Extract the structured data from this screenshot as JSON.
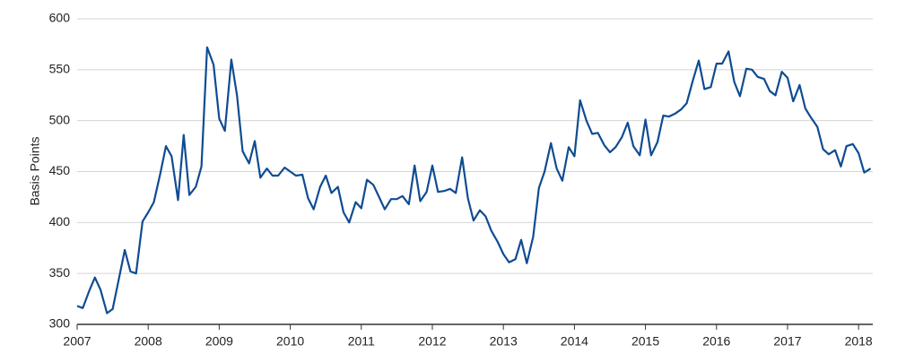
{
  "chart_data": {
    "type": "line",
    "y_label": "Basis Points",
    "x": [
      2007.0,
      2007.08,
      2007.17,
      2007.25,
      2007.33,
      2007.42,
      2007.5,
      2007.58,
      2007.67,
      2007.75,
      2007.83,
      2007.92,
      2008.0,
      2008.08,
      2008.17,
      2008.25,
      2008.33,
      2008.42,
      2008.5,
      2008.58,
      2008.67,
      2008.75,
      2008.83,
      2008.92,
      2009.0,
      2009.08,
      2009.17,
      2009.25,
      2009.33,
      2009.42,
      2009.5,
      2009.58,
      2009.67,
      2009.75,
      2009.83,
      2009.92,
      2010.0,
      2010.08,
      2010.17,
      2010.25,
      2010.33,
      2010.42,
      2010.5,
      2010.58,
      2010.67,
      2010.75,
      2010.83,
      2010.92,
      2011.0,
      2011.08,
      2011.17,
      2011.25,
      2011.33,
      2011.42,
      2011.5,
      2011.58,
      2011.67,
      2011.75,
      2011.83,
      2011.92,
      2012.0,
      2012.08,
      2012.17,
      2012.25,
      2012.33,
      2012.42,
      2012.5,
      2012.58,
      2012.67,
      2012.75,
      2012.83,
      2012.92,
      2013.0,
      2013.08,
      2013.17,
      2013.25,
      2013.33,
      2013.42,
      2013.5,
      2013.58,
      2013.67,
      2013.75,
      2013.83,
      2013.92,
      2014.0,
      2014.08,
      2014.17,
      2014.25,
      2014.33,
      2014.42,
      2014.5,
      2014.58,
      2014.67,
      2014.75,
      2014.83,
      2014.92,
      2015.0,
      2015.08,
      2015.17,
      2015.25,
      2015.33,
      2015.42,
      2015.5,
      2015.58,
      2015.67,
      2015.75,
      2015.83,
      2015.92,
      2016.0,
      2016.08,
      2016.17,
      2016.25,
      2016.33,
      2016.42,
      2016.5,
      2016.58,
      2016.67,
      2016.75,
      2016.83,
      2016.92,
      2017.0,
      2017.08,
      2017.17,
      2017.25,
      2017.33,
      2017.42,
      2017.5,
      2017.58,
      2017.67,
      2017.75,
      2017.83,
      2017.92,
      2018.0,
      2018.08,
      2018.17
    ],
    "values": [
      318,
      316,
      333,
      346,
      334,
      311,
      315,
      342,
      373,
      352,
      350,
      401,
      410,
      420,
      448,
      475,
      465,
      422,
      486,
      427,
      435,
      455,
      572,
      555,
      502,
      490,
      560,
      525,
      470,
      458,
      480,
      444,
      453,
      446,
      446,
      454,
      450,
      446,
      447,
      424,
      413,
      435,
      446,
      429,
      435,
      410,
      400,
      420,
      414,
      442,
      437,
      425,
      413,
      423,
      423,
      426,
      418,
      456,
      421,
      430,
      456,
      430,
      431,
      433,
      429,
      464,
      424,
      402,
      412,
      406,
      392,
      381,
      369,
      361,
      364,
      383,
      360,
      386,
      434,
      450,
      478,
      453,
      441,
      474,
      465,
      520,
      500,
      487,
      488,
      476,
      469,
      474,
      484,
      498,
      475,
      466,
      501,
      466,
      479,
      505,
      504,
      507,
      511,
      517,
      540,
      559,
      531,
      533,
      556,
      556,
      568,
      538,
      524,
      551,
      550,
      543,
      541,
      529,
      525,
      548,
      542,
      519,
      535,
      512,
      503,
      494,
      472,
      467,
      471,
      455,
      475,
      477,
      468,
      449,
      453
    ],
    "color": "#0f4c92",
    "xlim": [
      2007,
      2018.2
    ],
    "xticks": [
      2007,
      2008,
      2009,
      2010,
      2011,
      2012,
      2013,
      2014,
      2015,
      2016,
      2017,
      2018
    ],
    "ylim": [
      300,
      600
    ],
    "yticks": [
      300,
      350,
      400,
      450,
      500,
      550,
      600
    ],
    "grid": true
  }
}
